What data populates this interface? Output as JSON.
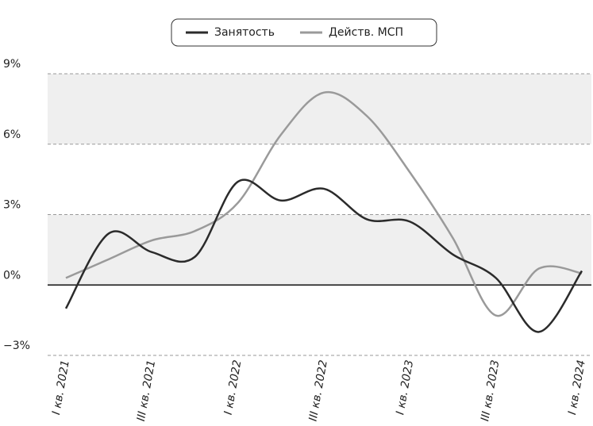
{
  "chart_data": {
    "type": "line",
    "categories": [
      "I кв. 2021",
      null,
      "III кв. 2021",
      null,
      "I кв. 2022",
      null,
      "III кв. 2022",
      null,
      "I кв. 2023",
      null,
      "III кв. 2023",
      null,
      "I кв. 2024"
    ],
    "series": [
      {
        "name": "Занятость",
        "color": "#2b2b2b",
        "values": [
          -1.0,
          2.2,
          1.4,
          1.2,
          4.4,
          3.6,
          4.1,
          2.8,
          2.7,
          1.3,
          0.3,
          -2.0,
          0.6
        ]
      },
      {
        "name": "Действ. МСП",
        "color": "#9a9a9a",
        "values": [
          0.3,
          1.1,
          1.9,
          2.3,
          3.5,
          6.4,
          8.2,
          7.2,
          4.8,
          2.0,
          -1.3,
          0.7,
          0.5
        ]
      }
    ],
    "ylim": [
      -3,
      9
    ],
    "yticks": [
      {
        "value": -3,
        "label": "−3%"
      },
      {
        "value": 0,
        "label": "0%"
      },
      {
        "value": 3,
        "label": "3%"
      },
      {
        "value": 6,
        "label": "6%"
      },
      {
        "value": 9,
        "label": "9%"
      }
    ],
    "grid": true,
    "legend": "top"
  }
}
